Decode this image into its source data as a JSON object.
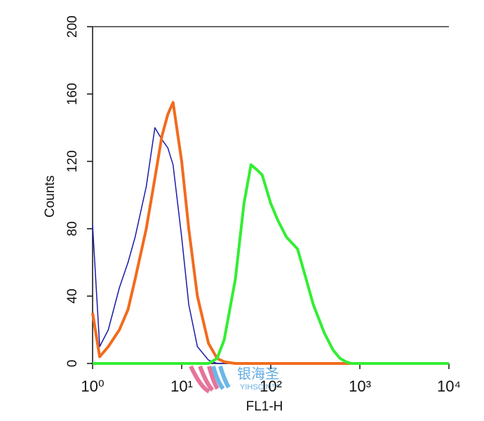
{
  "chart_data": {
    "type": "line",
    "xlabel": "FL1-H",
    "ylabel": "Counts",
    "xscale": "log",
    "xlim": [
      1,
      10000
    ],
    "ylim": [
      0,
      200
    ],
    "xticks": [
      {
        "value": 1,
        "label": "10⁰"
      },
      {
        "value": 10,
        "label": "10¹"
      },
      {
        "value": 100,
        "label": "10²"
      },
      {
        "value": 1000,
        "label": "10³"
      },
      {
        "value": 10000,
        "label": "10⁴"
      }
    ],
    "yticks": [
      0,
      40,
      80,
      120,
      160,
      200
    ],
    "series": [
      {
        "color": "#1a1aa8",
        "width": 1.5,
        "x": [
          1,
          1.2,
          1.5,
          2,
          2.5,
          3,
          4,
          5,
          6,
          7,
          8,
          10,
          12,
          15,
          20,
          25,
          30
        ],
        "values": [
          82,
          10,
          20,
          45,
          60,
          75,
          105,
          140,
          133,
          128,
          118,
          75,
          35,
          10,
          2,
          0,
          0
        ]
      },
      {
        "color": "#f26b1d",
        "width": 4,
        "x": [
          1,
          1.2,
          1.5,
          2,
          2.5,
          3,
          4,
          5,
          6,
          7,
          8,
          10,
          12,
          15,
          20,
          25,
          30,
          40,
          10000
        ],
        "values": [
          30,
          4,
          10,
          20,
          32,
          50,
          80,
          110,
          135,
          148,
          155,
          120,
          80,
          40,
          12,
          3,
          1,
          0,
          0
        ]
      },
      {
        "color": "#33ee33",
        "width": 4,
        "x": [
          1,
          20,
          25,
          30,
          40,
          50,
          60,
          70,
          80,
          100,
          120,
          150,
          200,
          250,
          300,
          400,
          500,
          600,
          700,
          800,
          10000
        ],
        "values": [
          0,
          0,
          3,
          14,
          50,
          95,
          118,
          115,
          112,
          95,
          85,
          75,
          68,
          50,
          35,
          18,
          8,
          3,
          1,
          0,
          0
        ]
      }
    ]
  },
  "watermark": {
    "text": "银海圣",
    "subtext": "YIHSCIN™"
  }
}
